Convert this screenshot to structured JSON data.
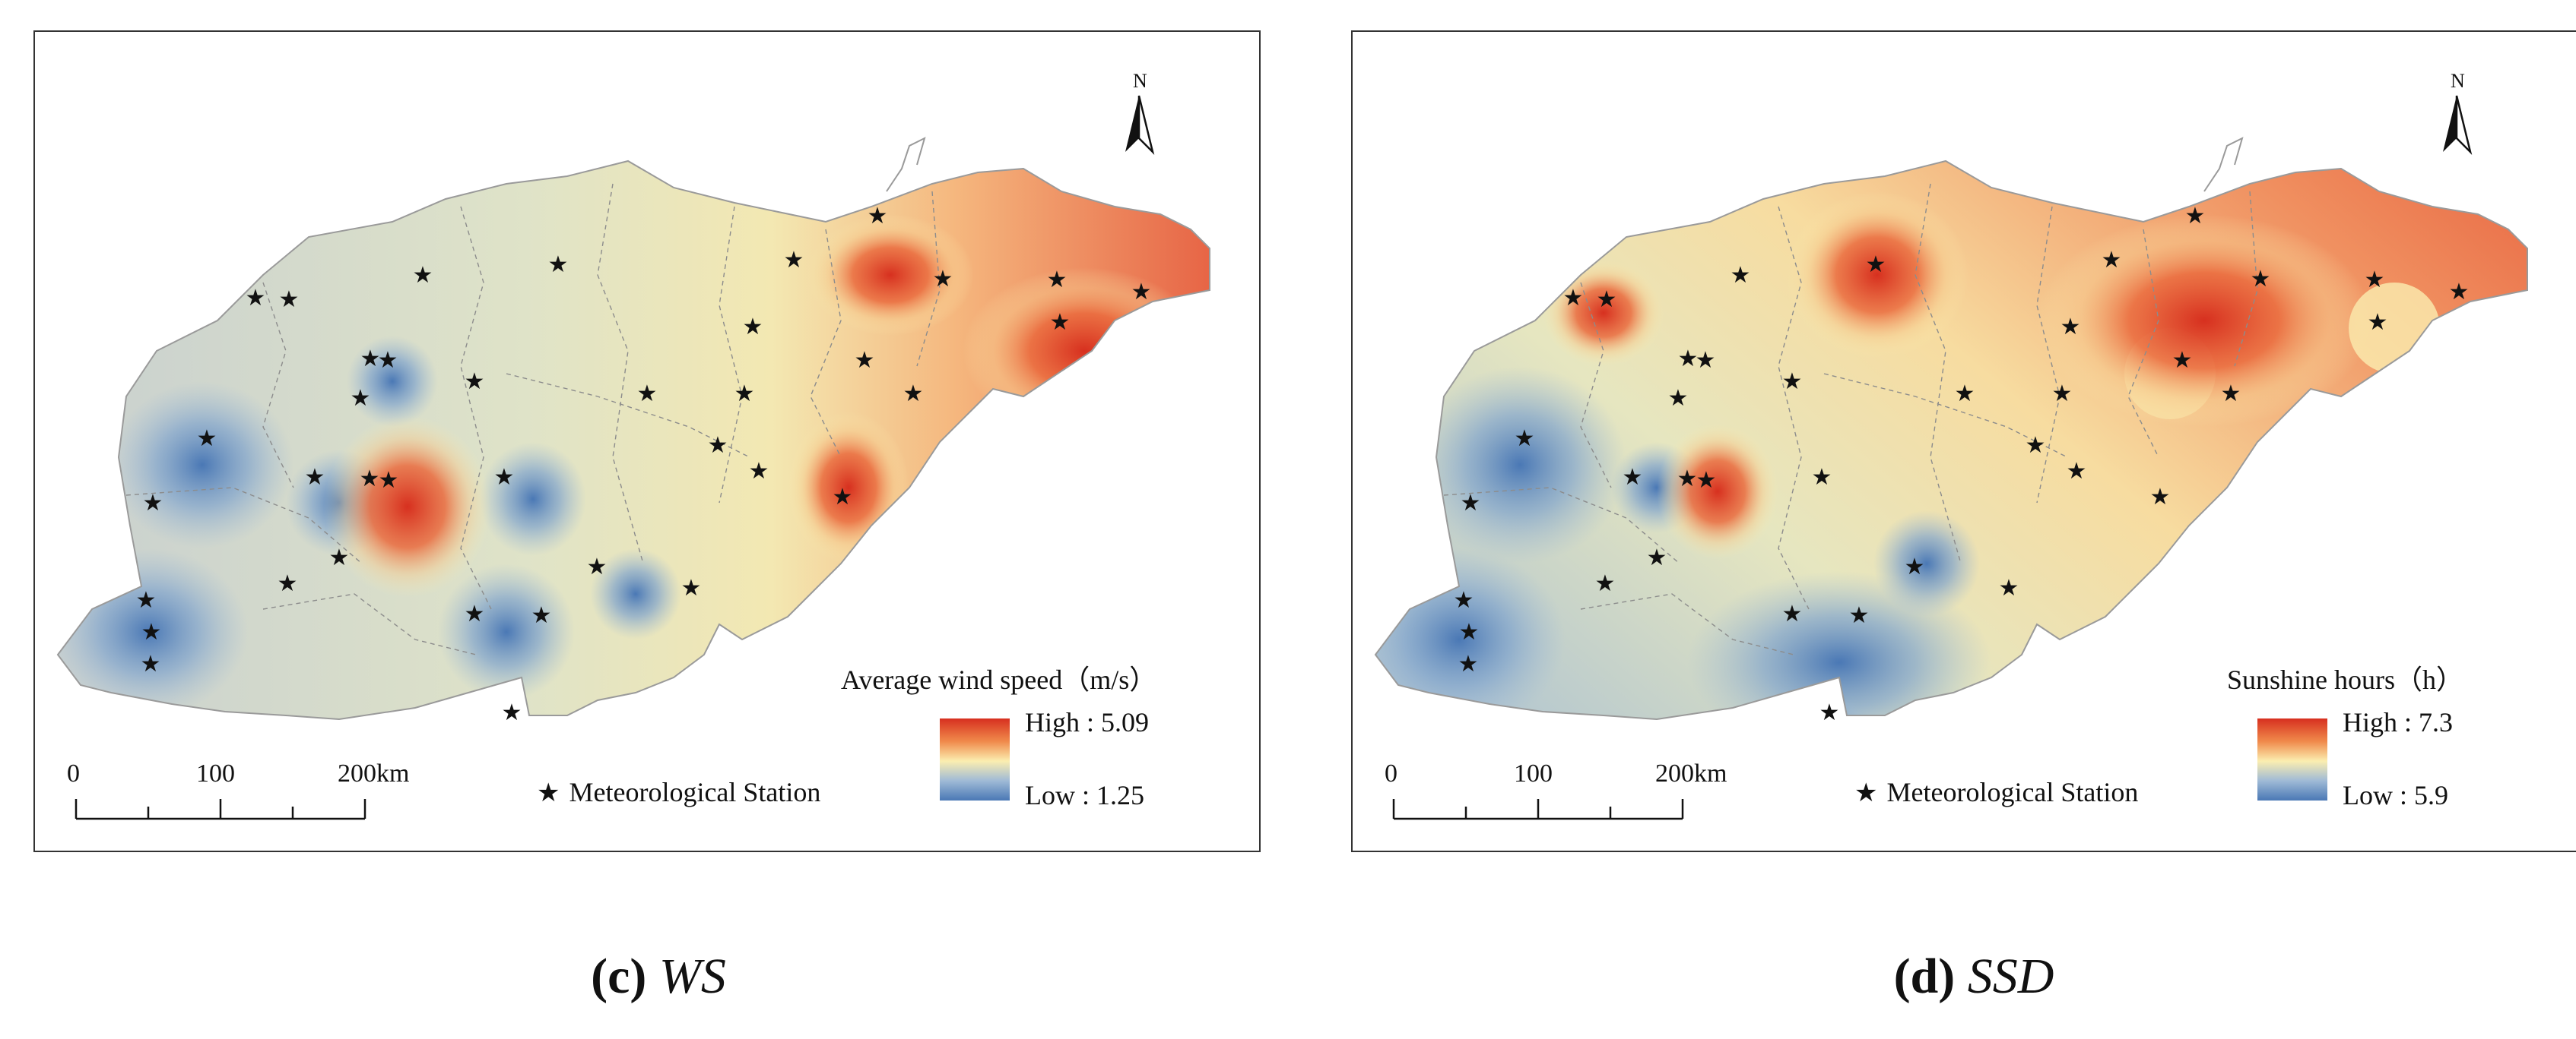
{
  "panels": [
    {
      "id": "c",
      "legend_title": "Average wind speed（m/s）",
      "high_label": "High : 5.09",
      "low_label": "Low : 1.25",
      "station_label": "Meteorological Station",
      "scale_labels": [
        "0",
        "100",
        "200km"
      ],
      "north_label": "N",
      "caption_letter": "(c)",
      "caption_var": "WS"
    },
    {
      "id": "d",
      "legend_title": "Sunshine hours（h）",
      "high_label": "High : 7.3",
      "low_label": "Low :  5.9",
      "station_label": "Meteorological Station",
      "scale_labels": [
        "0",
        "100",
        "200km"
      ],
      "north_label": "N",
      "caption_letter": "(d)",
      "caption_var": "SSD"
    }
  ],
  "colors": {
    "high": "#d7301f",
    "mid_high": "#f08a4b",
    "mid": "#fbeeb0",
    "mid_low": "#9fbad6",
    "low": "#4a78b5",
    "background_field": "#dfe3c8",
    "border": "#333333"
  },
  "symbols": {
    "station": "star-icon",
    "north_arrow": "north-arrow-icon"
  }
}
